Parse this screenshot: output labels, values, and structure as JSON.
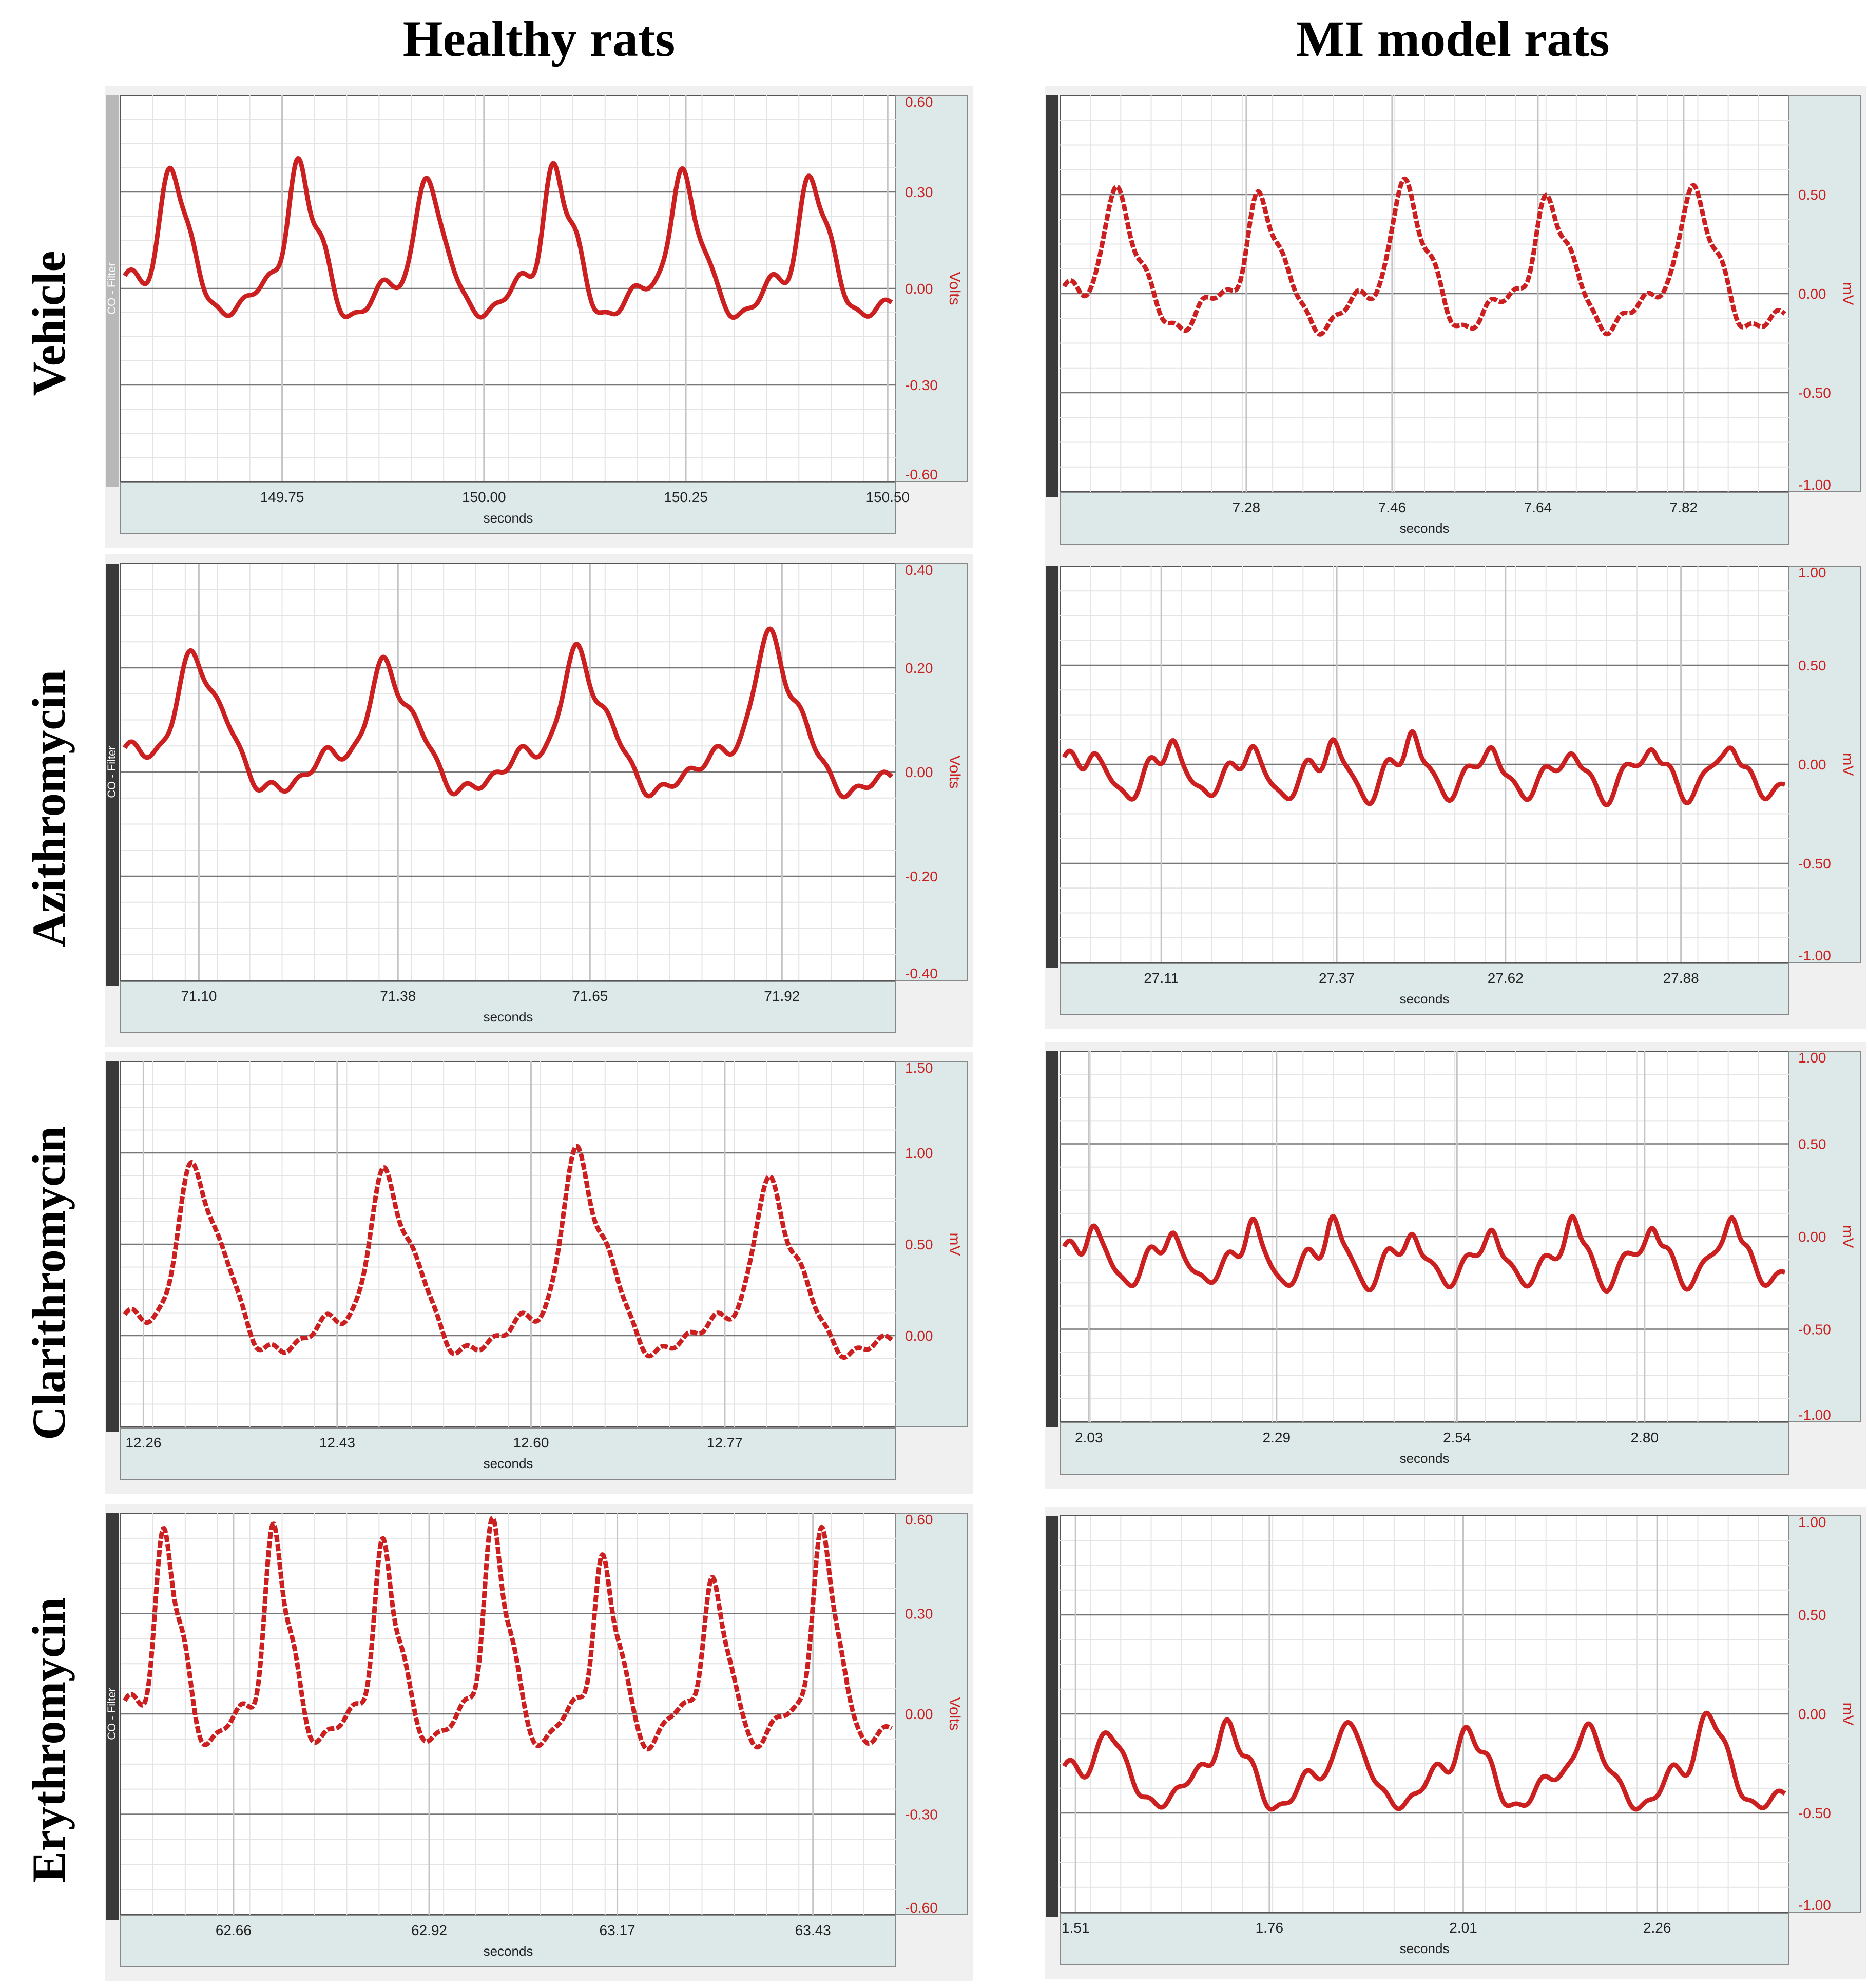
{
  "headers": {
    "healthy": "Healthy rats",
    "mi": "MI model rats"
  },
  "rows": [
    "Vehicle",
    "Azithromycin",
    "Clarithromycin",
    "Erythromycin"
  ],
  "colors": {
    "trace": "#cc1f1f",
    "axis_panel": "#dde8e8",
    "tick_text": "#cc1f1f",
    "grid": "#e4e4e4"
  },
  "chart_data": [
    {
      "type": "line",
      "group": "Healthy rats",
      "treatment": "Vehicle",
      "channel_label": "CO - Filter",
      "xlabel": "seconds",
      "ylabel": "Volts",
      "x_ticks": [
        "149.75",
        "150.00",
        "150.25",
        "150.50"
      ],
      "y_ticks": [
        "0.60",
        "0.30",
        "0.00",
        "-0.30",
        "-0.60"
      ],
      "ylim": [
        -0.6,
        0.6
      ],
      "xlim": [
        149.55,
        150.51
      ],
      "beats": 6,
      "dotted": false,
      "baseline": 0.0,
      "peaks": [
        0.36,
        0.38,
        0.33,
        0.37,
        0.35,
        0.34
      ]
    },
    {
      "type": "line",
      "group": "MI model rats",
      "treatment": "Vehicle",
      "channel_label": "",
      "xlabel": "seconds",
      "ylabel": "mV",
      "x_ticks": [
        "7.28",
        "7.46",
        "7.64",
        "7.82"
      ],
      "y_ticks": [
        "",
        "0.50",
        "0.00",
        "-0.50",
        "-1.00"
      ],
      "ylim": [
        -1.0,
        1.0
      ],
      "xlim": [
        7.05,
        7.95
      ],
      "beats": 5,
      "dotted": true,
      "baseline": -0.03,
      "peaks": [
        0.5,
        0.47,
        0.55,
        0.47,
        0.53
      ]
    },
    {
      "type": "line",
      "group": "Healthy rats",
      "treatment": "Azithromycin",
      "channel_label": "CO - Filter",
      "xlabel": "seconds",
      "ylabel": "Volts",
      "x_ticks": [
        "71.10",
        "71.38",
        "71.65",
        "71.92"
      ],
      "y_ticks": [
        "0.40",
        "0.20",
        "0.00",
        "-0.20",
        "-0.40"
      ],
      "ylim": [
        -0.4,
        0.4
      ],
      "xlim": [
        70.99,
        72.08
      ],
      "beats": 4,
      "dotted": false,
      "baseline": 0.02,
      "peaks": [
        0.22,
        0.2,
        0.22,
        0.25
      ]
    },
    {
      "type": "line",
      "group": "MI model rats",
      "treatment": "Azithromycin",
      "channel_label": "",
      "xlabel": "seconds",
      "ylabel": "mV",
      "x_ticks": [
        "27.11",
        "27.37",
        "27.62",
        "27.88"
      ],
      "y_ticks": [
        "1.00",
        "0.50",
        "0.00",
        "-0.50",
        "-1.00"
      ],
      "ylim": [
        -1.0,
        1.0
      ],
      "xlim": [
        26.96,
        28.04
      ],
      "beats": 9,
      "dotted": false,
      "baseline": -0.03,
      "peaks": [
        0.05,
        0.1,
        0.05,
        0.1,
        0.15,
        0.05,
        0.03,
        0.08,
        0.08
      ]
    },
    {
      "type": "line",
      "group": "Healthy rats",
      "treatment": "Clarithromycin",
      "channel_label": "",
      "xlabel": "seconds",
      "ylabel": "mV",
      "x_ticks": [
        "12.26",
        "12.43",
        "12.60",
        "12.77"
      ],
      "y_ticks": [
        "1.50",
        "1.00",
        "0.50",
        "0.00",
        ""
      ],
      "ylim": [
        -0.5,
        1.5
      ],
      "xlim": [
        12.24,
        12.92
      ],
      "beats": 4,
      "dotted": true,
      "baseline": 0.05,
      "peaks": [
        0.9,
        0.85,
        0.95,
        0.8
      ]
    },
    {
      "type": "line",
      "group": "MI model rats",
      "treatment": "Clarithromycin",
      "channel_label": "",
      "xlabel": "seconds",
      "ylabel": "mV",
      "x_ticks": [
        "2.03",
        "2.29",
        "2.54",
        "2.80"
      ],
      "y_ticks": [
        "1.00",
        "0.50",
        "0.00",
        "-0.50",
        "-1.00"
      ],
      "ylim": [
        -1.0,
        1.0
      ],
      "xlim": [
        1.99,
        3.0
      ],
      "beats": 9,
      "dotted": false,
      "baseline": -0.12,
      "peaks": [
        0.05,
        0.0,
        0.05,
        0.08,
        0.0,
        0.0,
        0.08,
        0.05,
        0.1
      ]
    },
    {
      "type": "line",
      "group": "Healthy rats",
      "treatment": "Erythromycin",
      "channel_label": "CO - Filter",
      "xlabel": "seconds",
      "ylabel": "Volts",
      "x_ticks": [
        "62.66",
        "62.92",
        "63.17",
        "63.43"
      ],
      "y_ticks": [
        "0.60",
        "0.30",
        "0.00",
        "-0.30",
        "-0.60"
      ],
      "ylim": [
        -0.6,
        0.6
      ],
      "xlim": [
        62.51,
        63.54
      ],
      "beats": 7,
      "dotted": true,
      "baseline": 0.0,
      "peaks": [
        0.52,
        0.52,
        0.48,
        0.55,
        0.45,
        0.38,
        0.52
      ]
    },
    {
      "type": "line",
      "group": "MI model rats",
      "treatment": "Erythromycin",
      "channel_label": "",
      "xlabel": "seconds",
      "ylabel": "mV",
      "x_ticks": [
        "1.51",
        "1.76",
        "2.01",
        "2.26"
      ],
      "y_ticks": [
        "1.00",
        "0.50",
        "0.00",
        "-0.50",
        "-1.00"
      ],
      "ylim": [
        -1.0,
        1.0
      ],
      "xlim": [
        1.49,
        2.43
      ],
      "beats": 6,
      "dotted": false,
      "baseline": -0.33,
      "peaks": [
        -0.1,
        -0.05,
        -0.05,
        -0.08,
        -0.07,
        0.0
      ]
    }
  ]
}
